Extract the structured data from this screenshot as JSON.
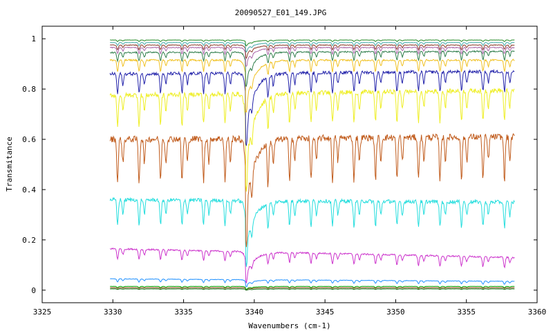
{
  "chart_data": {
    "type": "line",
    "title": "20090527_E01_149.JPG",
    "xlabel": "Wavenumbers (cm-1)",
    "ylabel": "Transmitance",
    "xlim": [
      3325,
      3360
    ],
    "ylim": [
      -0.05,
      1.05
    ],
    "x_ticks": [
      3325,
      3330,
      3335,
      3340,
      3345,
      3350,
      3355,
      3360
    ],
    "y_ticks": [
      0,
      0.2,
      0.4,
      0.6,
      0.8,
      1
    ],
    "grid": false,
    "legend": "none",
    "x_start": 3329.8,
    "x_end": 3358.4,
    "line_period_cm": 1.52,
    "main_dip_x": 3339.35,
    "series": [
      {
        "color": "#006400",
        "baseline": 0.005,
        "line_depth": 0.002,
        "main_dip": 0.004,
        "end": 0.005
      },
      {
        "color": "#8b4513",
        "baseline": 0.01,
        "line_depth": 0.003,
        "main_dip": 0.005,
        "end": 0.01
      },
      {
        "color": "#00aa00",
        "baseline": 0.015,
        "line_depth": 0.005,
        "main_dip": 0.008,
        "end": 0.015
      },
      {
        "color": "#1e90ff",
        "baseline": 0.045,
        "line_depth": 0.012,
        "main_dip": 0.02,
        "end": 0.035
      },
      {
        "color": "#cc33cc",
        "baseline": 0.165,
        "line_depth": 0.04,
        "main_dip": 0.1,
        "end": 0.13
      },
      {
        "color": "#22dddd",
        "baseline": 0.36,
        "line_depth": 0.1,
        "main_dip": 0.2,
        "end": 0.35
      },
      {
        "color": "#c05a1a",
        "baseline": 0.6,
        "line_depth": 0.17,
        "main_dip": 0.31,
        "end": 0.61
      },
      {
        "color": "#eeee22",
        "baseline": 0.775,
        "line_depth": 0.12,
        "main_dip": 0.32,
        "end": 0.795
      },
      {
        "color": "#2222aa",
        "baseline": 0.86,
        "line_depth": 0.08,
        "main_dip": 0.25,
        "end": 0.87
      },
      {
        "color": "#f0c020",
        "baseline": 0.915,
        "line_depth": 0.045,
        "main_dip": 0.19,
        "end": 0.915
      },
      {
        "color": "#2e7d4a",
        "baseline": 0.945,
        "line_depth": 0.035,
        "main_dip": 0.12,
        "end": 0.95
      },
      {
        "color": "#aa66aa",
        "baseline": 0.965,
        "line_depth": 0.025,
        "main_dip": 0.06,
        "end": 0.965
      },
      {
        "color": "#8b3a2a",
        "baseline": 0.975,
        "line_depth": 0.018,
        "main_dip": 0.04,
        "end": 0.975
      },
      {
        "color": "#44aaaa",
        "baseline": 0.985,
        "line_depth": 0.012,
        "main_dip": 0.03,
        "end": 0.985
      },
      {
        "color": "#228822",
        "baseline": 0.995,
        "line_depth": 0.006,
        "main_dip": 0.02,
        "end": 0.995
      }
    ]
  }
}
